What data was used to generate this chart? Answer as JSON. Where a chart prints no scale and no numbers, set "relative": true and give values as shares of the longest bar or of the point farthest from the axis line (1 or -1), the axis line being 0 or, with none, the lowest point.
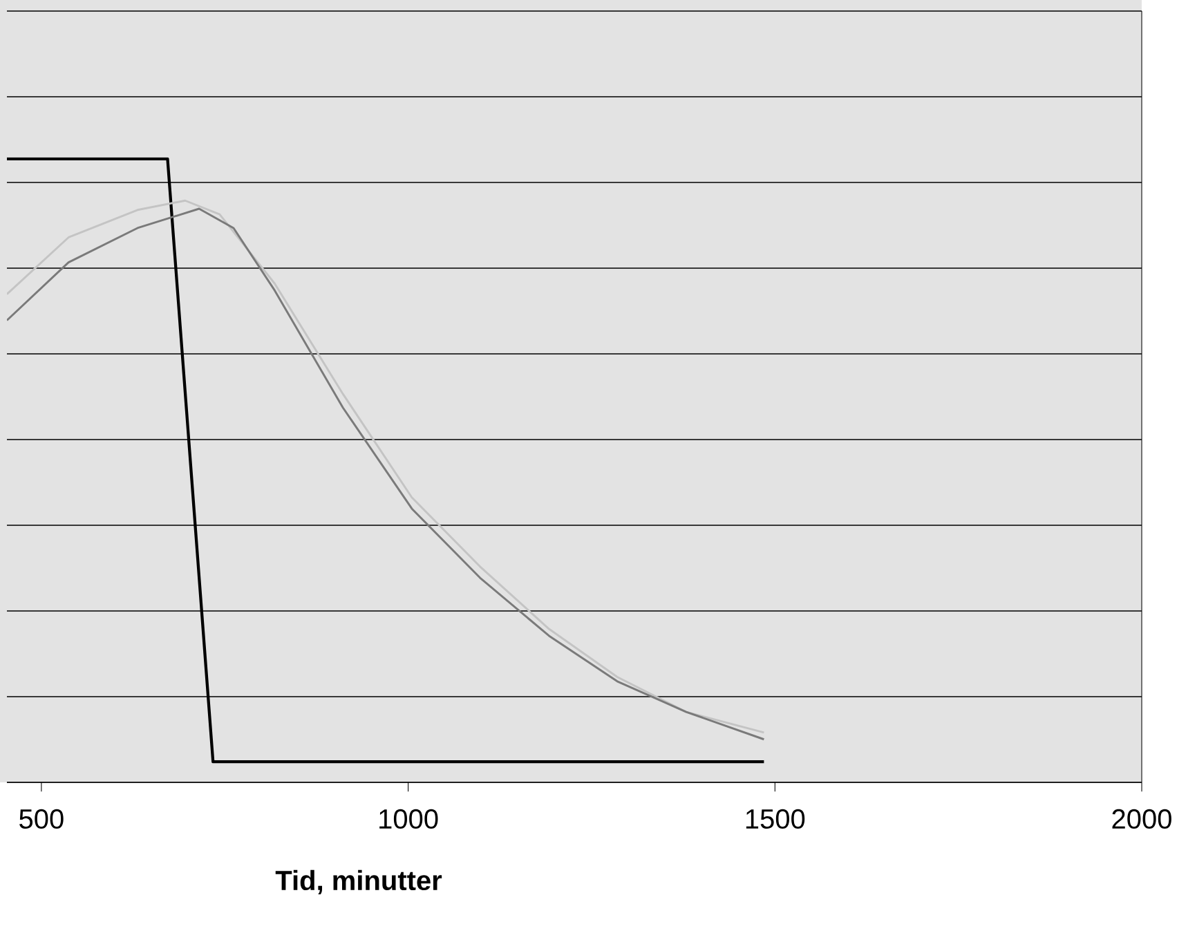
{
  "chart_data": {
    "type": "line",
    "xlabel": "Tid, minutter",
    "relative": true,
    "xlim": [
      453,
      2000
    ],
    "xticks": [
      500,
      1000,
      1500,
      2000
    ],
    "grid": "y",
    "marker": "none",
    "line_style": "solid",
    "series": [
      {
        "color": "#000000",
        "x": [
          453,
          672,
          734,
          1485
        ],
        "values": [
          1,
          1,
          0.033,
          0.033
        ]
      },
      {
        "color": "#c4c4c4",
        "x": [
          453,
          537,
          631,
          696,
          743,
          818,
          911,
          1005,
          1098,
          1192,
          1285,
          1379,
          1485
        ],
        "values": [
          0.783,
          0.874,
          0.918,
          0.933,
          0.911,
          0.8,
          0.623,
          0.457,
          0.346,
          0.246,
          0.169,
          0.113,
          0.08
        ]
      },
      {
        "color": "#7a7a7a",
        "x": [
          453,
          537,
          631,
          715,
          762,
          818,
          911,
          1005,
          1098,
          1192,
          1285,
          1379,
          1485
        ],
        "values": [
          0.741,
          0.834,
          0.889,
          0.92,
          0.889,
          0.789,
          0.601,
          0.439,
          0.328,
          0.235,
          0.162,
          0.113,
          0.069
        ]
      }
    ]
  }
}
